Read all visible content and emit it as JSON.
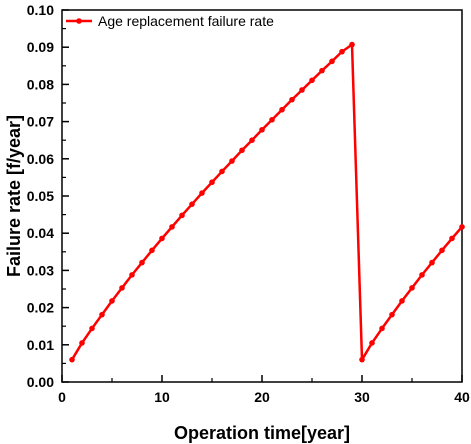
{
  "chart_data": {
    "type": "line",
    "xlabel": "Operation time[year]",
    "ylabel": "Failure rate [f/year]",
    "xlim": [
      0,
      40
    ],
    "ylim": [
      0,
      0.1
    ],
    "x_ticks": [
      "0",
      "10",
      "20",
      "30",
      "40"
    ],
    "y_ticks": [
      "0.00",
      "0.01",
      "0.02",
      "0.03",
      "0.04",
      "0.05",
      "0.06",
      "0.07",
      "0.08",
      "0.09",
      "0.10"
    ],
    "grid": false,
    "legend_position": "top-left",
    "series": [
      {
        "name": "Age replacement failure rate",
        "color": "#ff0000",
        "marker": "circle",
        "x": [
          1,
          2,
          3,
          4,
          5,
          6,
          7,
          8,
          9,
          10,
          11,
          12,
          13,
          14,
          15,
          16,
          17,
          18,
          19,
          20,
          21,
          22,
          23,
          24,
          25,
          26,
          27,
          28,
          29,
          30,
          31,
          32,
          33,
          34,
          35,
          36,
          37,
          38,
          39,
          40
        ],
        "y": [
          0.006,
          0.0105,
          0.0144,
          0.0181,
          0.0218,
          0.0253,
          0.0288,
          0.0321,
          0.0354,
          0.0386,
          0.0417,
          0.0448,
          0.0478,
          0.0508,
          0.0537,
          0.0566,
          0.0594,
          0.0623,
          0.065,
          0.0678,
          0.0705,
          0.0732,
          0.0759,
          0.0785,
          0.0811,
          0.0837,
          0.0862,
          0.0888,
          0.0907,
          0.006,
          0.0105,
          0.0144,
          0.0181,
          0.0218,
          0.0253,
          0.0288,
          0.0321,
          0.0354,
          0.0386,
          0.0417
        ]
      }
    ]
  }
}
